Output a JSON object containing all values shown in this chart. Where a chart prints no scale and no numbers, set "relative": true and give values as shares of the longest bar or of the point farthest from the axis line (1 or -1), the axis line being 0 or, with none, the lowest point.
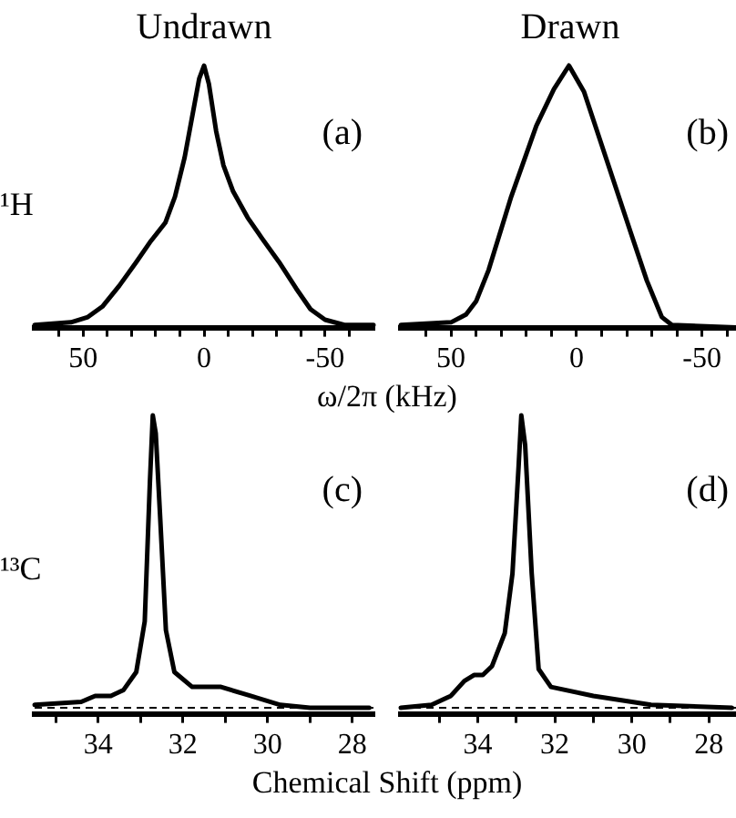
{
  "chart_data": [
    {
      "type": "line",
      "title": "Undrawn",
      "ylabel": "¹H",
      "xlabel": "ω/2π (kHz)",
      "annotations": [
        "(a)"
      ],
      "relative": true,
      "color": "#000000",
      "xlim": [
        70,
        -70
      ],
      "xticks": [
        {
          "value": 60,
          "label": null
        },
        50,
        {
          "value": 40,
          "label": null
        },
        {
          "value": 30,
          "label": null
        },
        {
          "value": 20,
          "label": null
        },
        {
          "value": 10,
          "label": null
        },
        0,
        {
          "value": -10,
          "label": null
        },
        {
          "value": -20,
          "label": null
        },
        {
          "value": -30,
          "label": null
        },
        {
          "value": -40,
          "label": null
        },
        -50,
        {
          "value": -60,
          "label": null
        }
      ],
      "x": [
        70,
        55,
        48,
        42,
        35,
        28,
        22,
        16,
        12,
        8,
        5,
        2,
        0,
        -2,
        -5,
        -8,
        -12,
        -18,
        -24,
        -31,
        -38,
        -44,
        -50,
        -58,
        -70
      ],
      "values": [
        0.01,
        0.02,
        0.04,
        0.08,
        0.16,
        0.25,
        0.33,
        0.4,
        0.5,
        0.65,
        0.8,
        0.95,
        1,
        0.93,
        0.75,
        0.62,
        0.52,
        0.42,
        0.34,
        0.25,
        0.15,
        0.07,
        0.03,
        0.01,
        0.01
      ]
    },
    {
      "type": "line",
      "title": "Drawn",
      "annotations": [
        "(b)"
      ],
      "relative": true,
      "color": "#000000",
      "xlim": [
        70,
        -65
      ],
      "xticks": [
        {
          "value": 60,
          "label": null
        },
        50,
        {
          "value": 40,
          "label": null
        },
        {
          "value": 30,
          "label": null
        },
        {
          "value": 20,
          "label": null
        },
        {
          "value": 10,
          "label": null
        },
        0,
        {
          "value": -10,
          "label": null
        },
        {
          "value": -20,
          "label": null
        },
        {
          "value": -30,
          "label": null
        },
        {
          "value": -40,
          "label": null
        },
        -50,
        {
          "value": -60,
          "label": null
        }
      ],
      "x": [
        70,
        50,
        44,
        40,
        35,
        26,
        16,
        9,
        3,
        -3,
        -12,
        -21,
        -28,
        -34,
        -38,
        -65
      ],
      "values": [
        0.01,
        0.02,
        0.05,
        0.1,
        0.22,
        0.5,
        0.77,
        0.91,
        1,
        0.9,
        0.64,
        0.38,
        0.18,
        0.04,
        0.01,
        0
      ]
    },
    {
      "type": "line",
      "ylabel": "¹³C",
      "xlabel": "Chemical Shift (ppm)",
      "annotations": [
        "(c)"
      ],
      "relative": true,
      "color": "#000000",
      "xlim": [
        35.5,
        27.5
      ],
      "xticks": [
        {
          "value": 35,
          "label": null
        },
        34,
        {
          "value": 33,
          "label": null
        },
        32,
        {
          "value": 31,
          "label": null
        },
        30,
        {
          "value": 29,
          "label": null
        },
        28
      ],
      "ref_lines": [
        {
          "axis": "y",
          "value": 0.02,
          "line_style": "dashed",
          "color": "#000000"
        }
      ],
      "x": [
        35.5,
        34.4,
        34.07,
        33.7,
        33.4,
        33.1,
        32.9,
        32.78,
        32.71,
        32.64,
        32.54,
        32.4,
        32.2,
        31.78,
        31.1,
        30.4,
        29.7,
        29,
        27.6
      ],
      "values": [
        0.03,
        0.04,
        0.06,
        0.06,
        0.08,
        0.14,
        0.31,
        0.77,
        1,
        0.94,
        0.67,
        0.28,
        0.14,
        0.09,
        0.09,
        0.06,
        0.03,
        0.02,
        0.02
      ]
    },
    {
      "type": "line",
      "annotations": [
        "(d)"
      ],
      "relative": true,
      "color": "#000000",
      "xlim": [
        36,
        27.2
      ],
      "xticks": [
        {
          "value": 35,
          "label": null
        },
        34,
        {
          "value": 33,
          "label": null
        },
        32,
        {
          "value": 31,
          "label": null
        },
        30,
        {
          "value": 29,
          "label": null
        },
        28
      ],
      "ref_lines": [
        {
          "axis": "y",
          "value": 0.02,
          "line_style": "dashed",
          "color": "#000000"
        }
      ],
      "x": [
        36,
        35.2,
        34.7,
        34.35,
        34.1,
        33.87,
        33.63,
        33.3,
        33.1,
        32.94,
        32.87,
        32.77,
        32.6,
        32.42,
        32.1,
        31,
        29.5,
        27.4
      ],
      "values": [
        0.02,
        0.03,
        0.06,
        0.11,
        0.13,
        0.13,
        0.16,
        0.27,
        0.47,
        0.83,
        1,
        0.9,
        0.47,
        0.15,
        0.09,
        0.06,
        0.03,
        0.02
      ]
    }
  ]
}
